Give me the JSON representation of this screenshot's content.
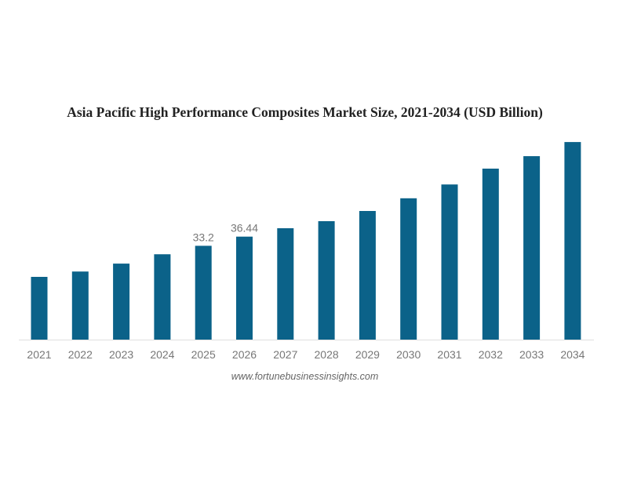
{
  "chart_data": {
    "type": "bar",
    "title": "Asia Pacific High Performance Composites Market Size, 2021-2034 (USD Billion)",
    "categories": [
      "2021",
      "2022",
      "2023",
      "2024",
      "2025",
      "2026",
      "2027",
      "2028",
      "2029",
      "2030",
      "2031",
      "2032",
      "2033",
      "2034"
    ],
    "values": [
      22.2,
      24.1,
      26.9,
      30.2,
      33.2,
      36.44,
      39.4,
      41.9,
      45.5,
      50.0,
      54.9,
      60.5,
      64.9,
      69.9
    ],
    "data_labels": [
      null,
      null,
      null,
      null,
      "33.2",
      "36.44",
      null,
      null,
      null,
      null,
      null,
      null,
      null,
      null
    ],
    "xlabel": "",
    "ylabel": "",
    "ylim": [
      0,
      75
    ],
    "grid": false,
    "legend": "none",
    "bar_color": "#0b6289",
    "source": "www.fortunebusinessinsights.com"
  }
}
